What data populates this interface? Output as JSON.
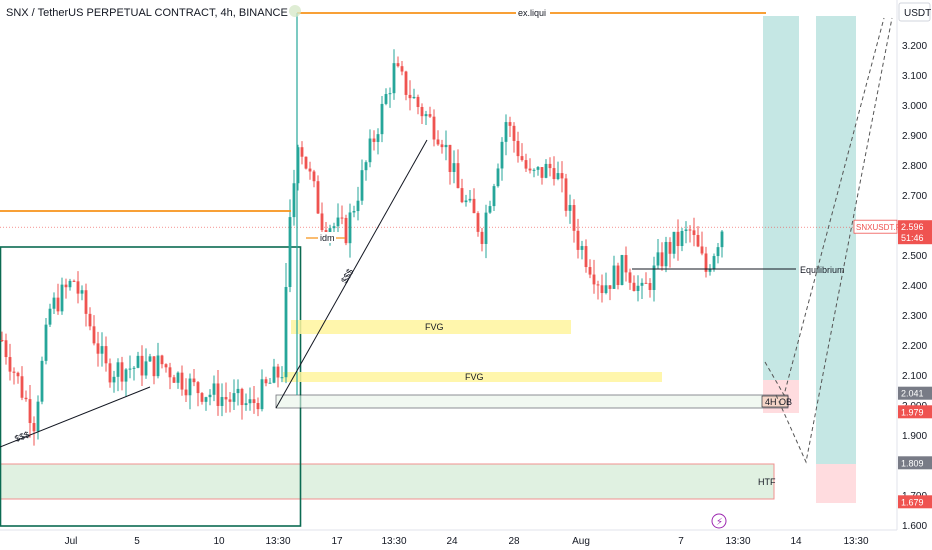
{
  "chart_data": {
    "type": "candlestick",
    "title": "SNX / TetherUS PERPETUAL CONTRACT, 4h, BINANCE",
    "currency": "USDT",
    "price_ticks": [
      1.6,
      1.7,
      1.8,
      1.9,
      2.0,
      2.1,
      2.2,
      2.3,
      2.4,
      2.5,
      2.6,
      2.7,
      2.8,
      2.9,
      3.0,
      3.1,
      3.2
    ],
    "time_ticks": [
      "Jul",
      "5",
      "10",
      "13:30",
      "17",
      "13:30",
      "24",
      "28",
      "Aug",
      "7",
      "13:30",
      "14",
      "13:30"
    ],
    "ylim": [
      1.6,
      3.28
    ],
    "colors": {
      "up": "#26a69a",
      "down": "#ef5350",
      "orange": "#f7931a",
      "fvg": "#fff59d",
      "long": "#b2dfdb",
      "short": "#ffcdd2",
      "box": "#0b6b52"
    },
    "price_labels": [
      {
        "text": "SNXUSDT.P",
        "value": "2.596",
        "sub": "51:46",
        "price": 2.596,
        "color": "#ef5350"
      },
      {
        "value": "2.041",
        "price": 2.041,
        "color": "#787b86"
      },
      {
        "value": "1.979",
        "price": 1.979,
        "color": "#ef5350"
      },
      {
        "value": "1.809",
        "price": 1.809,
        "color": "#787b86"
      },
      {
        "value": "1.679",
        "price": 1.679,
        "color": "#ef5350"
      }
    ],
    "annotations": {
      "liqui": "ex.liqui",
      "idm": "idm",
      "sss1": "$$$",
      "sss2": "$$$",
      "fvg1": "FVG",
      "fvg2": "FVG",
      "equilibrium": "Equilibrium",
      "ob": "4H OB",
      "htf": "HTF"
    },
    "anchors": [
      {
        "i": 0,
        "p": 2.22
      },
      {
        "i": 8,
        "p": 1.95
      },
      {
        "i": 12,
        "p": 2.32
      },
      {
        "i": 18,
        "p": 2.42
      },
      {
        "i": 26,
        "p": 2.12
      },
      {
        "i": 40,
        "p": 2.14
      },
      {
        "i": 48,
        "p": 2.06
      },
      {
        "i": 62,
        "p": 2.0
      },
      {
        "i": 70,
        "p": 2.12
      },
      {
        "i": 72,
        "p": 2.6
      },
      {
        "i": 74,
        "p": 2.9
      },
      {
        "i": 80,
        "p": 2.62
      },
      {
        "i": 86,
        "p": 2.58
      },
      {
        "i": 92,
        "p": 2.85
      },
      {
        "i": 98,
        "p": 3.12
      },
      {
        "i": 104,
        "p": 3.0
      },
      {
        "i": 110,
        "p": 2.9
      },
      {
        "i": 114,
        "p": 2.72
      },
      {
        "i": 120,
        "p": 2.58
      },
      {
        "i": 126,
        "p": 2.95
      },
      {
        "i": 132,
        "p": 2.76
      },
      {
        "i": 138,
        "p": 2.8
      },
      {
        "i": 144,
        "p": 2.55
      },
      {
        "i": 150,
        "p": 2.4
      },
      {
        "i": 156,
        "p": 2.47
      },
      {
        "i": 160,
        "p": 2.37
      },
      {
        "i": 166,
        "p": 2.52
      },
      {
        "i": 172,
        "p": 2.58
      },
      {
        "i": 176,
        "p": 2.45
      },
      {
        "i": 180,
        "p": 2.596
      }
    ]
  }
}
